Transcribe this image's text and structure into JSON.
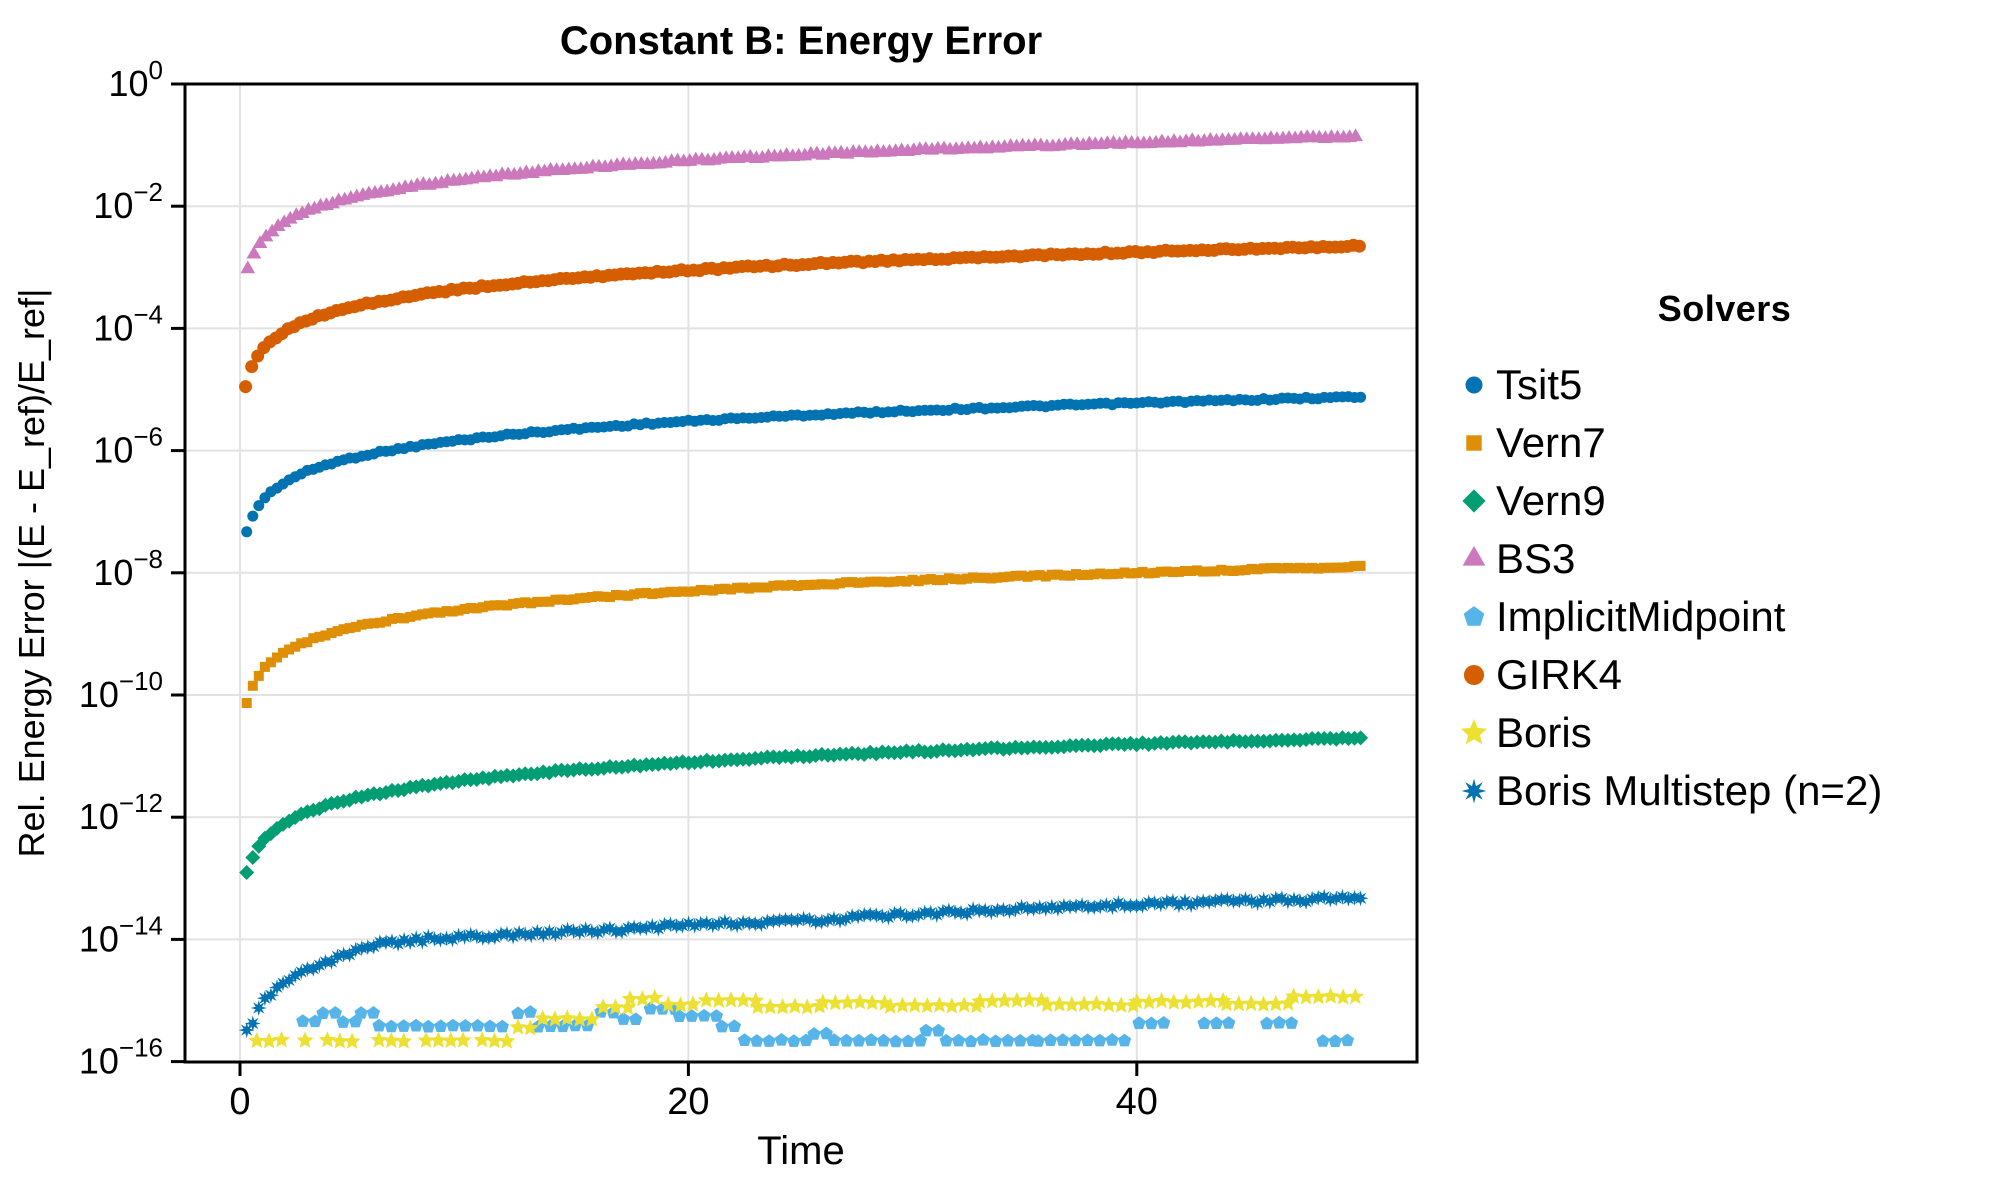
{
  "title": "Constant B: Energy Error",
  "colors": {
    "background": "#ffffff",
    "axis": "#000000",
    "grid": "#e2e2e2",
    "text": "#000000"
  },
  "legend": {
    "title": "Solvers",
    "position": "right"
  },
  "chart_data": {
    "type": "scatter",
    "title": "Constant B: Energy Error",
    "xlabel": "Time",
    "ylabel": "Rel. Energy Error |(E - E_ref)/E_ref|",
    "x_axis": {
      "scale": "linear",
      "ticks": [
        0,
        20,
        40
      ],
      "range": [
        -2.45,
        52.5
      ],
      "grid": true
    },
    "y_axis": {
      "scale": "log10",
      "tick_exponents": [
        0,
        -2,
        -4,
        -6,
        -8,
        -10,
        -12,
        -14,
        -16
      ],
      "range_exponents": [
        0,
        -16
      ],
      "grid": true
    },
    "series": [
      {
        "name": "Tsit5",
        "marker": "circle",
        "color": "#0173b2",
        "kind": "smooth",
        "anchors_t_log10y": [
          [
            0.3,
            -7.34
          ],
          [
            0.5,
            -7.12
          ],
          [
            0.8,
            -6.92
          ],
          [
            1.2,
            -6.74
          ],
          [
            2,
            -6.52
          ],
          [
            3,
            -6.34
          ],
          [
            5,
            -6.12
          ],
          [
            8,
            -5.92
          ],
          [
            12,
            -5.74
          ],
          [
            17,
            -5.59
          ],
          [
            24,
            -5.44
          ],
          [
            32,
            -5.32
          ],
          [
            41,
            -5.21
          ],
          [
            50,
            -5.12
          ]
        ]
      },
      {
        "name": "Vern7",
        "marker": "square",
        "color": "#de8f05",
        "kind": "smooth",
        "anchors_t_log10y": [
          [
            0.3,
            -10.12
          ],
          [
            0.5,
            -9.9
          ],
          [
            0.8,
            -9.7
          ],
          [
            1.2,
            -9.52
          ],
          [
            2,
            -9.3
          ],
          [
            3,
            -9.12
          ],
          [
            5,
            -8.9
          ],
          [
            8,
            -8.7
          ],
          [
            12,
            -8.52
          ],
          [
            17,
            -8.37
          ],
          [
            24,
            -8.22
          ],
          [
            32,
            -8.1
          ],
          [
            41,
            -7.99
          ],
          [
            50,
            -7.9
          ]
        ]
      },
      {
        "name": "Vern9",
        "marker": "diamond",
        "color": "#029e73",
        "kind": "smooth",
        "anchors_t_log10y": [
          [
            0.3,
            -12.92
          ],
          [
            0.5,
            -12.7
          ],
          [
            0.8,
            -12.5
          ],
          [
            1.2,
            -12.32
          ],
          [
            2,
            -12.1
          ],
          [
            3,
            -11.92
          ],
          [
            5,
            -11.7
          ],
          [
            8,
            -11.5
          ],
          [
            12,
            -11.32
          ],
          [
            17,
            -11.17
          ],
          [
            24,
            -11.02
          ],
          [
            32,
            -10.9
          ],
          [
            41,
            -10.79
          ],
          [
            50,
            -10.7
          ]
        ]
      },
      {
        "name": "BS3",
        "marker": "triangle-up",
        "color": "#cc78bc",
        "kind": "smooth",
        "anchors_t_log10y": [
          [
            0.35,
            -3.03
          ],
          [
            0.5,
            -2.87
          ],
          [
            0.8,
            -2.67
          ],
          [
            1.2,
            -2.49
          ],
          [
            2,
            -2.27
          ],
          [
            3,
            -2.09
          ],
          [
            5,
            -1.87
          ],
          [
            8,
            -1.67
          ],
          [
            12,
            -1.49
          ],
          [
            17,
            -1.34
          ],
          [
            24,
            -1.19
          ],
          [
            32,
            -1.07
          ],
          [
            41,
            -0.96
          ],
          [
            50,
            -0.87
          ]
        ]
      },
      {
        "name": "ImplicitMidpoint",
        "marker": "pentagon",
        "color": "#56b4e9",
        "kind": "runs",
        "runs_t0_t1_log10y": [
          [
            2.8,
            3.5,
            -15.35
          ],
          [
            3.7,
            4.4,
            -15.2
          ],
          [
            4.6,
            5.3,
            -15.35
          ],
          [
            5.4,
            6.1,
            -15.2
          ],
          [
            6.2,
            12.2,
            -15.42
          ],
          [
            12.4,
            13.1,
            -15.2
          ],
          [
            13.3,
            16.0,
            -15.42
          ],
          [
            16.1,
            16.9,
            -15.2
          ],
          [
            17.1,
            18.1,
            -15.3
          ],
          [
            18.3,
            19.4,
            -15.13
          ],
          [
            19.6,
            21.4,
            -15.25
          ],
          [
            21.5,
            22.3,
            -15.42
          ],
          [
            22.5,
            25.4,
            -15.66
          ],
          [
            25.6,
            26.3,
            -15.55
          ],
          [
            26.5,
            30.4,
            -15.66
          ],
          [
            30.6,
            31.3,
            -15.5
          ],
          [
            31.5,
            35.4,
            -15.66
          ],
          [
            35.6,
            39.5,
            -15.66
          ],
          [
            40.1,
            41.2,
            -15.37
          ],
          [
            43.0,
            44.6,
            -15.37
          ],
          [
            45.8,
            47.3,
            -15.37
          ],
          [
            48.3,
            49.5,
            -15.66
          ]
        ]
      },
      {
        "name": "GIRK4",
        "marker": "circle",
        "color": "#d55e00",
        "kind": "smooth",
        "anchors_t_log10y": [
          [
            0.25,
            -4.95
          ],
          [
            0.5,
            -4.65
          ],
          [
            0.8,
            -4.45
          ],
          [
            1.2,
            -4.27
          ],
          [
            2,
            -4.05
          ],
          [
            3,
            -3.87
          ],
          [
            5,
            -3.65
          ],
          [
            8,
            -3.45
          ],
          [
            12,
            -3.27
          ],
          [
            17,
            -3.12
          ],
          [
            24,
            -2.97
          ],
          [
            32,
            -2.85
          ],
          [
            41,
            -2.74
          ],
          [
            50,
            -2.65
          ]
        ]
      },
      {
        "name": "Boris",
        "marker": "star5",
        "color": "#ece133",
        "kind": "runs",
        "runs_t0_t1_log10y": [
          [
            0.75,
            2.35,
            -15.66
          ],
          [
            2.9,
            3.4,
            -15.66
          ],
          [
            3.9,
            5.4,
            -15.66
          ],
          [
            6.2,
            7.6,
            -15.66
          ],
          [
            8.3,
            10.2,
            -15.66
          ],
          [
            10.8,
            12.3,
            -15.66
          ],
          [
            12.4,
            13.3,
            -15.45
          ],
          [
            13.5,
            16.1,
            -15.3
          ],
          [
            16.2,
            17.3,
            -15.12
          ],
          [
            17.4,
            19.0,
            -14.97
          ],
          [
            19.1,
            20.7,
            -15.07
          ],
          [
            20.8,
            23.0,
            -15.0
          ],
          [
            23.1,
            25.9,
            -15.1
          ],
          [
            26.0,
            28.9,
            -15.04
          ],
          [
            29.0,
            32.9,
            -15.09
          ],
          [
            33.0,
            35.9,
            -15.01
          ],
          [
            36.0,
            39.9,
            -15.07
          ],
          [
            40.0,
            43.9,
            -15.02
          ],
          [
            44.0,
            46.9,
            -15.06
          ],
          [
            47.0,
            50.0,
            -14.94
          ]
        ]
      },
      {
        "name": "Boris Multistep (n=2)",
        "marker": "star8",
        "color": "#0173b2",
        "kind": "smooth",
        "anchors_t_log10y": [
          [
            0.3,
            -15.5
          ],
          [
            0.6,
            -15.36
          ],
          [
            0.8,
            -15.15
          ],
          [
            1.2,
            -14.92
          ],
          [
            1.6,
            -14.83
          ],
          [
            2.5,
            -14.6
          ],
          [
            4,
            -14.35
          ],
          [
            6,
            -14.1
          ],
          [
            8,
            -14.0
          ],
          [
            12,
            -13.92
          ],
          [
            16,
            -13.85
          ],
          [
            25,
            -13.7
          ],
          [
            35,
            -13.5
          ],
          [
            42,
            -13.4
          ],
          [
            50,
            -13.33
          ]
        ]
      }
    ]
  }
}
